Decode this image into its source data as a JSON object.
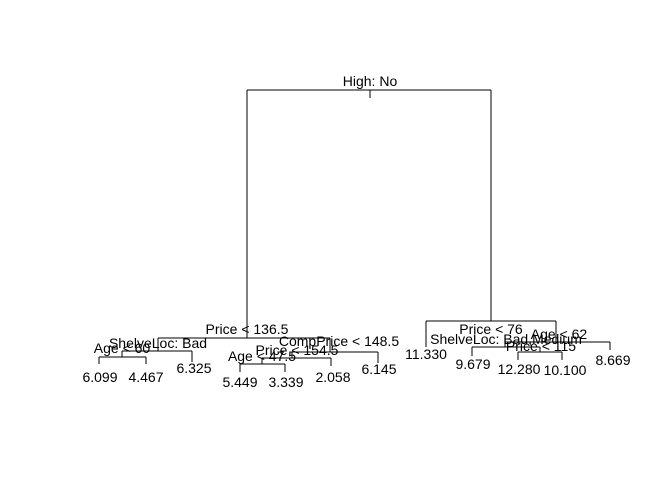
{
  "tree": {
    "root_label": "High: No",
    "split_labels": {
      "price_136": "Price < 136.5",
      "shelveloc_bad": "ShelveLoc: Bad",
      "age_60": "Age < 60",
      "compprice_148": "CompPrice < 148.5",
      "price_154": "Price < 154.5",
      "age_47": "Age < 47.5",
      "price_76": "Price < 76",
      "age_62": "Age < 62",
      "shelveloc_badmedium": "ShelveLoc: Bad,Medium",
      "price_115": "Price < 115"
    },
    "leaves": {
      "l1": "6.099",
      "l2": "4.467",
      "l3": "6.325",
      "l4": "5.449",
      "l5": "3.339",
      "l6": "2.058",
      "l7": "6.145",
      "l8": "11.330",
      "l9": "9.679",
      "l10": "12.280",
      "l11": "10.100",
      "l12": "8.669"
    }
  }
}
